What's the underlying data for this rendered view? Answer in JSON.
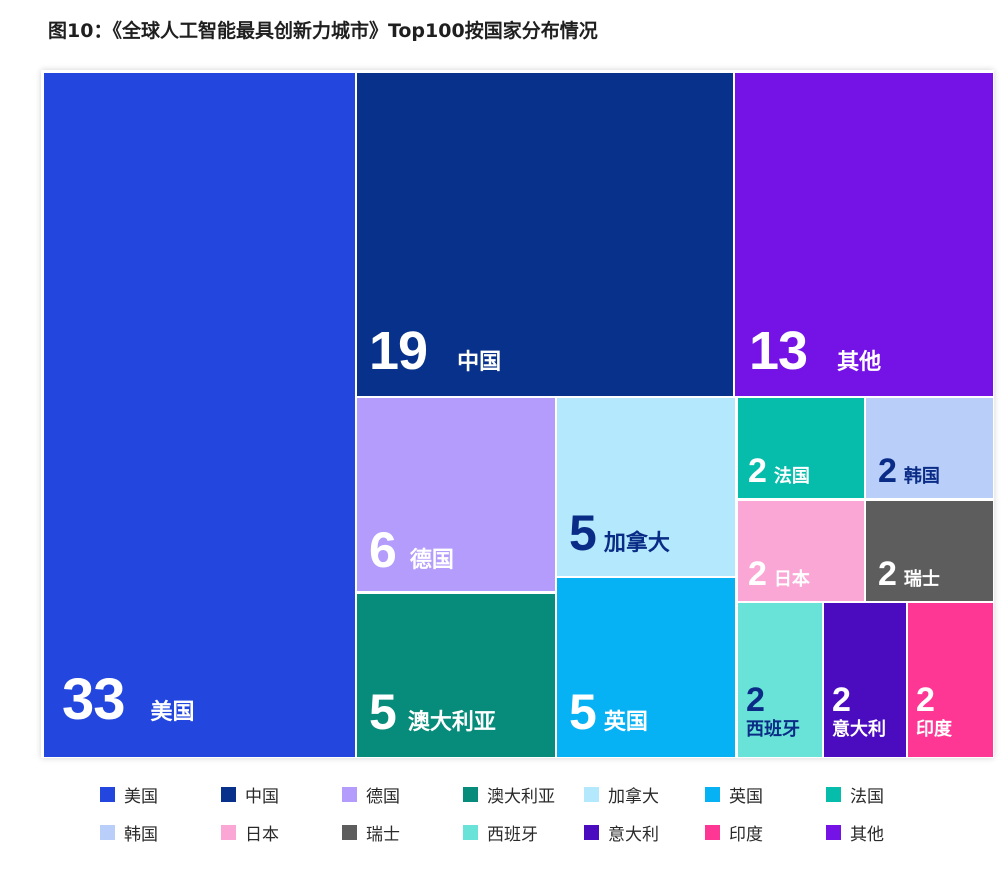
{
  "title": "图10：《全球人工智能最具创新力城市》Top100按国家分布情况",
  "chart_data": {
    "type": "treemap",
    "title": "图10：《全球人工智能最具创新力城市》Top100按国家分布情况",
    "categories": [
      "美国",
      "中国",
      "其他",
      "德国",
      "加拿大",
      "澳大利亚",
      "英国",
      "法国",
      "韩国",
      "日本",
      "瑞士",
      "西班牙",
      "意大利",
      "印度"
    ],
    "values": [
      33,
      19,
      13,
      6,
      5,
      5,
      5,
      2,
      2,
      2,
      2,
      2,
      2,
      2
    ],
    "colors": {
      "美国": "#2347de",
      "中国": "#07318b",
      "其他": "#7513e6",
      "德国": "#b49cfc",
      "加拿大": "#b3e8fd",
      "澳大利亚": "#078b7a",
      "英国": "#07b2f4",
      "法国": "#06bcab",
      "韩国": "#b9cffa",
      "日本": "#fba7d6",
      "瑞士": "#5d5d5d",
      "西班牙": "#69e3d7",
      "意大利": "#4b0cc0",
      "印度": "#fe3694"
    },
    "legend": {
      "position": "bottom",
      "items": [
        "美国",
        "中国",
        "德国",
        "澳大利亚",
        "加拿大",
        "英国",
        "法国",
        "韩国",
        "日本",
        "瑞士",
        "西班牙",
        "意大利",
        "印度",
        "其他"
      ]
    }
  }
}
